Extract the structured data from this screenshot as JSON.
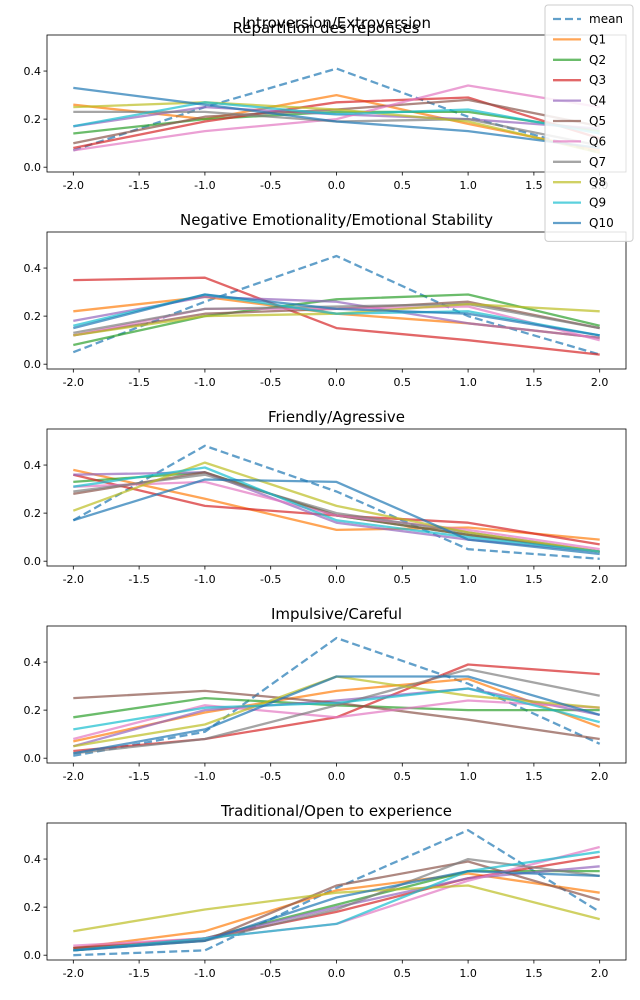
{
  "figure": {
    "suptitle": "Répartition des réponses",
    "legend": {
      "placement": "top-right",
      "entries": [
        "mean",
        "Q1",
        "Q2",
        "Q3",
        "Q4",
        "Q5",
        "Q6",
        "Q7",
        "Q8",
        "Q9",
        "Q10"
      ]
    },
    "colors": {
      "mean": "#1f77b4",
      "Q1": "#ff7f0e",
      "Q2": "#2ca02c",
      "Q3": "#d62728",
      "Q4": "#9467bd",
      "Q5": "#8c564b",
      "Q6": "#e377c2",
      "Q7": "#7f7f7f",
      "Q8": "#bcbd22",
      "Q9": "#17becf",
      "Q10": "#1f77b4"
    }
  },
  "chart_data": [
    {
      "type": "line",
      "title": "Introversion/Extroversion",
      "x": [
        -2,
        -1,
        0,
        1,
        2
      ],
      "xlim": [
        -2.2,
        2.2
      ],
      "ylim": [
        -0.02,
        0.55
      ],
      "xticks": [
        "-2.0",
        "-1.5",
        "-1.0",
        "-0.5",
        "0.0",
        "0.5",
        "1.0",
        "1.5",
        "2.0"
      ],
      "yticks": [
        "0.0",
        "0.2",
        "0.4"
      ],
      "series": [
        {
          "name": "mean",
          "values": [
            0.07,
            0.25,
            0.41,
            0.21,
            0.06
          ]
        },
        {
          "name": "Q1",
          "values": [
            0.26,
            0.2,
            0.3,
            0.18,
            0.07
          ]
        },
        {
          "name": "Q2",
          "values": [
            0.14,
            0.2,
            0.23,
            0.23,
            0.15
          ]
        },
        {
          "name": "Q3",
          "values": [
            0.08,
            0.19,
            0.27,
            0.29,
            0.12
          ]
        },
        {
          "name": "Q4",
          "values": [
            0.17,
            0.25,
            0.22,
            0.2,
            0.16
          ]
        },
        {
          "name": "Q5",
          "values": [
            0.1,
            0.21,
            0.24,
            0.28,
            0.17
          ]
        },
        {
          "name": "Q6",
          "values": [
            0.07,
            0.15,
            0.2,
            0.34,
            0.25
          ]
        },
        {
          "name": "Q7",
          "values": [
            0.23,
            0.23,
            0.19,
            0.2,
            0.09
          ]
        },
        {
          "name": "Q8",
          "values": [
            0.25,
            0.27,
            0.24,
            0.19,
            0.06
          ]
        },
        {
          "name": "Q9",
          "values": [
            0.17,
            0.27,
            0.22,
            0.24,
            0.14
          ]
        },
        {
          "name": "Q10",
          "values": [
            0.33,
            0.26,
            0.19,
            0.15,
            0.08
          ]
        }
      ]
    },
    {
      "type": "line",
      "title": "Negative Emotionality/Emotional Stability",
      "x": [
        -2,
        -1,
        0,
        1,
        2
      ],
      "xlim": [
        -2.2,
        2.2
      ],
      "ylim": [
        -0.02,
        0.55
      ],
      "xticks": [
        "-2.0",
        "-1.5",
        "-1.0",
        "-0.5",
        "0.0",
        "0.5",
        "1.0",
        "1.5",
        "2.0"
      ],
      "yticks": [
        "0.0",
        "0.2",
        "0.4"
      ],
      "series": [
        {
          "name": "mean",
          "values": [
            0.05,
            0.26,
            0.45,
            0.2,
            0.04
          ]
        },
        {
          "name": "Q1",
          "values": [
            0.22,
            0.28,
            0.21,
            0.17,
            0.11
          ]
        },
        {
          "name": "Q2",
          "values": [
            0.08,
            0.2,
            0.27,
            0.29,
            0.16
          ]
        },
        {
          "name": "Q3",
          "values": [
            0.35,
            0.36,
            0.15,
            0.1,
            0.04
          ]
        },
        {
          "name": "Q4",
          "values": [
            0.18,
            0.28,
            0.26,
            0.17,
            0.11
          ]
        },
        {
          "name": "Q5",
          "values": [
            0.12,
            0.21,
            0.23,
            0.26,
            0.15
          ]
        },
        {
          "name": "Q6",
          "values": [
            0.12,
            0.23,
            0.23,
            0.24,
            0.1
          ]
        },
        {
          "name": "Q7",
          "values": [
            0.13,
            0.23,
            0.24,
            0.25,
            0.15
          ]
        },
        {
          "name": "Q8",
          "values": [
            0.12,
            0.2,
            0.21,
            0.25,
            0.22
          ]
        },
        {
          "name": "Q9",
          "values": [
            0.16,
            0.29,
            0.21,
            0.22,
            0.12
          ]
        },
        {
          "name": "Q10",
          "values": [
            0.15,
            0.29,
            0.23,
            0.21,
            0.12
          ]
        }
      ]
    },
    {
      "type": "line",
      "title": "Friendly/Agressive",
      "x": [
        -2,
        -1,
        0,
        1,
        2
      ],
      "xlim": [
        -2.2,
        2.2
      ],
      "ylim": [
        -0.02,
        0.55
      ],
      "xticks": [
        "-2.0",
        "-1.5",
        "-1.0",
        "-0.5",
        "0.0",
        "0.5",
        "1.0",
        "1.5",
        "2.0"
      ],
      "yticks": [
        "0.0",
        "0.2",
        "0.4"
      ],
      "series": [
        {
          "name": "mean",
          "values": [
            0.17,
            0.48,
            0.29,
            0.05,
            0.01
          ]
        },
        {
          "name": "Q1",
          "values": [
            0.38,
            0.26,
            0.13,
            0.14,
            0.09
          ]
        },
        {
          "name": "Q2",
          "values": [
            0.33,
            0.37,
            0.19,
            0.11,
            0.04
          ]
        },
        {
          "name": "Q3",
          "values": [
            0.36,
            0.23,
            0.19,
            0.16,
            0.07
          ]
        },
        {
          "name": "Q4",
          "values": [
            0.36,
            0.37,
            0.16,
            0.09,
            0.04
          ]
        },
        {
          "name": "Q5",
          "values": [
            0.28,
            0.37,
            0.19,
            0.11,
            0.04
          ]
        },
        {
          "name": "Q6",
          "values": [
            0.31,
            0.33,
            0.19,
            0.13,
            0.05
          ]
        },
        {
          "name": "Q7",
          "values": [
            0.29,
            0.36,
            0.2,
            0.12,
            0.04
          ]
        },
        {
          "name": "Q8",
          "values": [
            0.21,
            0.41,
            0.23,
            0.12,
            0.04
          ]
        },
        {
          "name": "Q9",
          "values": [
            0.31,
            0.39,
            0.17,
            0.1,
            0.04
          ]
        },
        {
          "name": "Q10",
          "values": [
            0.17,
            0.34,
            0.33,
            0.09,
            0.03
          ]
        }
      ]
    },
    {
      "type": "line",
      "title": "Impulsive/Careful",
      "x": [
        -2,
        -1,
        0,
        1,
        2
      ],
      "xlim": [
        -2.2,
        2.2
      ],
      "ylim": [
        -0.02,
        0.55
      ],
      "xticks": [
        "-2.0",
        "-1.5",
        "-1.0",
        "-0.5",
        "0.0",
        "0.5",
        "1.0",
        "1.5",
        "2.0"
      ],
      "yticks": [
        "0.0",
        "0.2",
        "0.4"
      ],
      "series": [
        {
          "name": "mean",
          "values": [
            0.01,
            0.11,
            0.5,
            0.31,
            0.06
          ]
        },
        {
          "name": "Q1",
          "values": [
            0.07,
            0.19,
            0.28,
            0.33,
            0.13
          ]
        },
        {
          "name": "Q2",
          "values": [
            0.17,
            0.25,
            0.22,
            0.2,
            0.2
          ]
        },
        {
          "name": "Q3",
          "values": [
            0.03,
            0.08,
            0.17,
            0.39,
            0.35
          ]
        },
        {
          "name": "Q4",
          "values": [
            0.05,
            0.2,
            0.24,
            0.29,
            0.18
          ]
        },
        {
          "name": "Q5",
          "values": [
            0.25,
            0.28,
            0.23,
            0.16,
            0.08
          ]
        },
        {
          "name": "Q6",
          "values": [
            0.08,
            0.22,
            0.17,
            0.24,
            0.21
          ]
        },
        {
          "name": "Q7",
          "values": [
            0.02,
            0.08,
            0.22,
            0.37,
            0.26
          ]
        },
        {
          "name": "Q8",
          "values": [
            0.05,
            0.14,
            0.34,
            0.26,
            0.21
          ]
        },
        {
          "name": "Q9",
          "values": [
            0.12,
            0.21,
            0.23,
            0.29,
            0.15
          ]
        },
        {
          "name": "Q10",
          "values": [
            0.02,
            0.12,
            0.34,
            0.34,
            0.18
          ]
        }
      ]
    },
    {
      "type": "line",
      "title": "Traditional/Open to experience",
      "x": [
        -2,
        -1,
        0,
        1,
        2
      ],
      "xlim": [
        -2.2,
        2.2
      ],
      "ylim": [
        -0.02,
        0.55
      ],
      "xticks": [
        "-2.0",
        "-1.5",
        "-1.0",
        "-0.5",
        "0.0",
        "0.5",
        "1.0",
        "1.5",
        "2.0"
      ],
      "yticks": [
        "0.0",
        "0.2",
        "0.4"
      ],
      "series": [
        {
          "name": "mean",
          "values": [
            0.0,
            0.02,
            0.28,
            0.52,
            0.18
          ]
        },
        {
          "name": "Q1",
          "values": [
            0.03,
            0.1,
            0.27,
            0.34,
            0.26
          ]
        },
        {
          "name": "Q2",
          "values": [
            0.02,
            0.07,
            0.21,
            0.35,
            0.35
          ]
        },
        {
          "name": "Q3",
          "values": [
            0.03,
            0.07,
            0.18,
            0.32,
            0.41
          ]
        },
        {
          "name": "Q4",
          "values": [
            0.02,
            0.07,
            0.2,
            0.32,
            0.37
          ]
        },
        {
          "name": "Q5",
          "values": [
            0.03,
            0.06,
            0.29,
            0.39,
            0.23
          ]
        },
        {
          "name": "Q6",
          "values": [
            0.04,
            0.07,
            0.13,
            0.31,
            0.45
          ]
        },
        {
          "name": "Q7",
          "values": [
            0.02,
            0.06,
            0.19,
            0.4,
            0.33
          ]
        },
        {
          "name": "Q8",
          "values": [
            0.1,
            0.19,
            0.26,
            0.29,
            0.15
          ]
        },
        {
          "name": "Q9",
          "values": [
            0.02,
            0.07,
            0.13,
            0.35,
            0.43
          ]
        },
        {
          "name": "Q10",
          "values": [
            0.02,
            0.06,
            0.24,
            0.35,
            0.33
          ]
        }
      ]
    }
  ]
}
